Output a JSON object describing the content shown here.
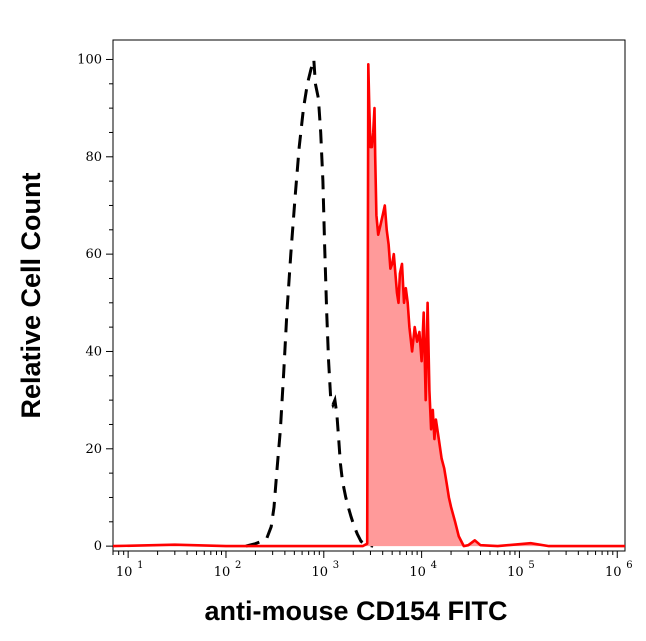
{
  "chart_data": {
    "type": "area",
    "title": "",
    "xlabel": "anti-mouse CD154 FITC",
    "ylabel": "Relative Cell Count",
    "xscale": "log",
    "xlim": [
      7,
      1200000
    ],
    "ylim": [
      -1,
      104
    ],
    "grid": false,
    "x_ticks": [
      {
        "base": "10",
        "exp": "1",
        "value": 10
      },
      {
        "base": "10",
        "exp": "2",
        "value": 100
      },
      {
        "base": "10",
        "exp": "3",
        "value": 1000
      },
      {
        "base": "10",
        "exp": "4",
        "value": 10000
      },
      {
        "base": "10",
        "exp": "5",
        "value": 100000
      },
      {
        "base": "10",
        "exp": "6",
        "value": 1000000
      }
    ],
    "y_ticks": [
      {
        "label": "0",
        "value": 0
      },
      {
        "label": "20",
        "value": 20
      },
      {
        "label": "40",
        "value": 40
      },
      {
        "label": "60",
        "value": 60
      },
      {
        "label": "80",
        "value": 80
      },
      {
        "label": "100",
        "value": 100
      }
    ],
    "colors": {
      "stained_line": "#ff0000",
      "stained_fill": "#ff9a9a",
      "control_line": "#000000",
      "axis": "#000000"
    },
    "series": [
      {
        "style": "dashed-black",
        "points": [
          [
            160,
            0
          ],
          [
            200,
            0.5
          ],
          [
            230,
            1
          ],
          [
            260,
            1.5
          ],
          [
            290,
            4
          ],
          [
            310,
            8
          ],
          [
            330,
            15
          ],
          [
            360,
            24
          ],
          [
            390,
            36
          ],
          [
            420,
            48
          ],
          [
            460,
            60
          ],
          [
            510,
            72
          ],
          [
            560,
            82
          ],
          [
            620,
            90
          ],
          [
            680,
            95
          ],
          [
            740,
            98
          ],
          [
            790,
            100
          ],
          [
            820,
            95
          ],
          [
            880,
            92
          ],
          [
            930,
            85
          ],
          [
            980,
            75
          ],
          [
            1020,
            62
          ],
          [
            1070,
            48
          ],
          [
            1120,
            38
          ],
          [
            1180,
            30
          ],
          [
            1240,
            29
          ],
          [
            1300,
            30
          ],
          [
            1360,
            27
          ],
          [
            1420,
            22
          ],
          [
            1480,
            17
          ],
          [
            1540,
            14
          ],
          [
            1600,
            12
          ],
          [
            1680,
            10
          ],
          [
            1780,
            8
          ],
          [
            1900,
            6
          ],
          [
            2050,
            4
          ],
          [
            2200,
            2.5
          ],
          [
            2400,
            1
          ],
          [
            2700,
            0.3
          ],
          [
            3200,
            0
          ]
        ]
      },
      {
        "style": "filled-red",
        "points": [
          [
            7,
            0
          ],
          [
            30,
            0.3
          ],
          [
            100,
            0
          ],
          [
            500,
            0
          ],
          [
            2500,
            0
          ],
          [
            2780,
            0.5
          ],
          [
            2850,
            99
          ],
          [
            2920,
            90
          ],
          [
            3000,
            82
          ],
          [
            3100,
            82
          ],
          [
            3200,
            85
          ],
          [
            3300,
            90
          ],
          [
            3350,
            80
          ],
          [
            3450,
            68
          ],
          [
            3600,
            64
          ],
          [
            3800,
            66
          ],
          [
            4000,
            68
          ],
          [
            4200,
            70
          ],
          [
            4400,
            65
          ],
          [
            4600,
            62
          ],
          [
            4800,
            57
          ],
          [
            5000,
            58
          ],
          [
            5200,
            60
          ],
          [
            5400,
            56
          ],
          [
            5600,
            52
          ],
          [
            5800,
            50
          ],
          [
            6000,
            56
          ],
          [
            6300,
            58
          ],
          [
            6600,
            50
          ],
          [
            6900,
            53
          ],
          [
            7200,
            50
          ],
          [
            7500,
            45
          ],
          [
            8000,
            40
          ],
          [
            8500,
            45
          ],
          [
            9000,
            42
          ],
          [
            9500,
            44
          ],
          [
            10000,
            38
          ],
          [
            10500,
            48
          ],
          [
            11000,
            30
          ],
          [
            11500,
            50
          ],
          [
            12000,
            32
          ],
          [
            12500,
            24
          ],
          [
            13000,
            28
          ],
          [
            13500,
            22
          ],
          [
            14000,
            26
          ],
          [
            15000,
            22
          ],
          [
            16000,
            18
          ],
          [
            17000,
            16
          ],
          [
            18000,
            13
          ],
          [
            19000,
            10
          ],
          [
            20000,
            8
          ],
          [
            22000,
            5
          ],
          [
            24000,
            2
          ],
          [
            27000,
            0
          ],
          [
            30000,
            0.2
          ],
          [
            35000,
            1.2
          ],
          [
            40000,
            0.2
          ],
          [
            60000,
            0
          ],
          [
            130000,
            0.6
          ],
          [
            200000,
            0
          ],
          [
            1000000,
            0
          ],
          [
            1200000,
            0
          ]
        ]
      }
    ]
  }
}
